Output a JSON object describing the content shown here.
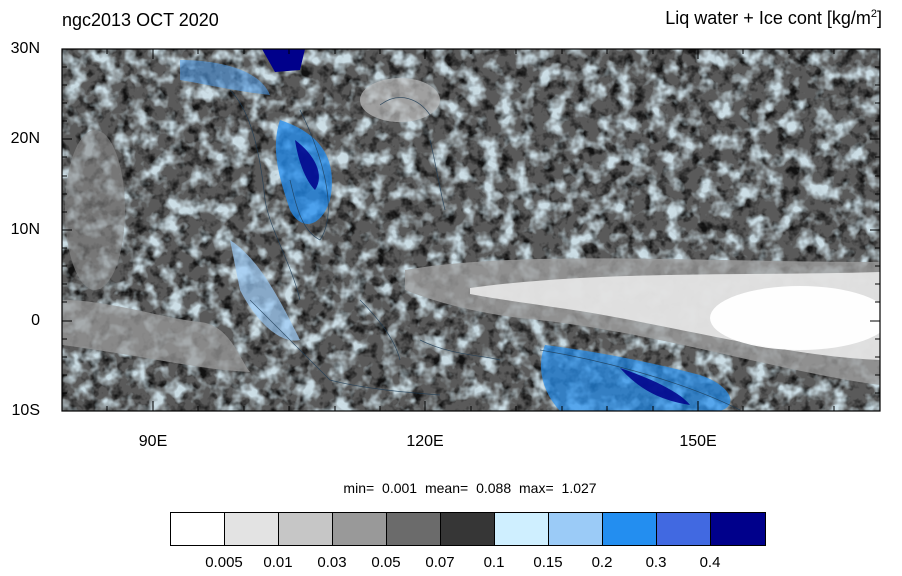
{
  "title_left": "ngc2013 OCT 2020",
  "title_right": "Liq water + Ice cont [kg/m",
  "title_right_sup": "2",
  "title_right_close": "]",
  "lat_labels": [
    "30N",
    "20N",
    "10N",
    "0",
    "10S"
  ],
  "lon_labels": [
    "90E",
    "120E",
    "150E"
  ],
  "stats": {
    "min_label": "min=",
    "min": "0.001",
    "mean_label": "mean=",
    "mean": "0.088",
    "max_label": "max=",
    "max": "1.027"
  },
  "colorbar": {
    "colors": [
      "#ffffff",
      "#e3e3e3",
      "#c6c6c6",
      "#999999",
      "#6b6b6b",
      "#363636",
      "#cfefff",
      "#9bcbf7",
      "#238ef0",
      "#4169e1",
      "#00008b"
    ],
    "levels": [
      "0.005",
      "0.01",
      "0.03",
      "0.05",
      "0.07",
      "0.1",
      "0.15",
      "0.2",
      "0.3",
      "0.4"
    ]
  }
}
